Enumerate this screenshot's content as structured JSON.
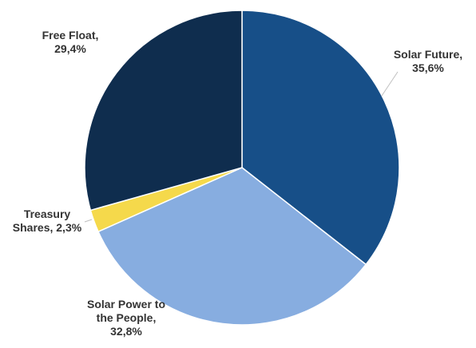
{
  "chart_data": {
    "type": "pie",
    "title": "",
    "categories": [
      "Solar Future",
      "Solar Power to the People",
      "Treasury Shares",
      "Free Float"
    ],
    "values": [
      35.6,
      32.8,
      2.3,
      29.4
    ],
    "labels": [
      [
        "Solar Future,",
        "35,6%"
      ],
      [
        "Solar Power to",
        "the People,",
        "32,8%"
      ],
      [
        "Treasury",
        "Shares, 2,3%"
      ],
      [
        "Free Float,",
        "29,4%"
      ]
    ],
    "colors": [
      "#174f88",
      "#87ade0",
      "#f5d94b",
      "#0f2d4e"
    ],
    "legend": "none",
    "start_angle_degrees": 0,
    "direction": "clockwise"
  }
}
